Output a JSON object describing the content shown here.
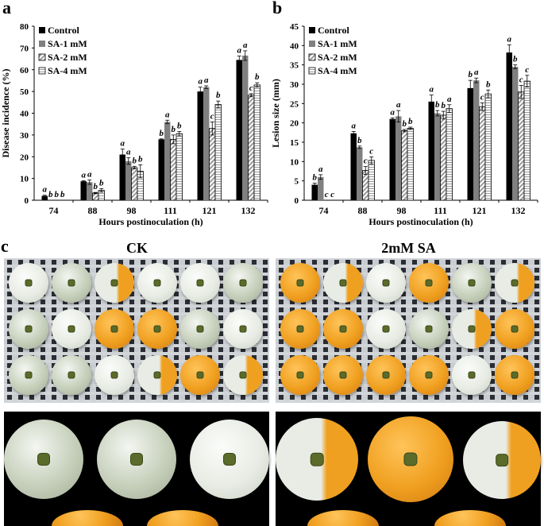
{
  "panels": {
    "a": "a",
    "b": "b",
    "c": "c"
  },
  "photos": {
    "left_title": "CK",
    "right_title": "2mM SA"
  },
  "colors": {
    "control": "#000000",
    "sa1": "#808080",
    "sa2_stripe": "#9a9a9a",
    "sa4_stripe": "#9a9a9a",
    "orange": "#f0a020",
    "mold": "#e8ece4"
  },
  "chart_data": [
    {
      "type": "bar",
      "panel": "a",
      "ylabel": "Disease incidence (%)",
      "xlabel": "Hours postinoculation (h)",
      "categories": [
        "74",
        "88",
        "98",
        "111",
        "121",
        "132"
      ],
      "ylim": [
        0,
        80
      ],
      "yticks": [
        "0",
        "10",
        "20",
        "30",
        "40",
        "50",
        "60",
        "70",
        "80"
      ],
      "legend_position": "top-left",
      "series": [
        {
          "name": "Control",
          "values": [
            2,
            8.7,
            21,
            28,
            50,
            64.5
          ],
          "errors": [
            0.3,
            0.3,
            2.5,
            0.2,
            2,
            1.8
          ],
          "letters": [
            "a",
            "a",
            "a",
            "b",
            "a",
            "a"
          ]
        },
        {
          "name": "SA-1 mM",
          "values": [
            0,
            8.3,
            18,
            36,
            52,
            66.5
          ],
          "errors": [
            0,
            1,
            1.5,
            0.8,
            0.6,
            2.2
          ],
          "letters": [
            "b",
            "a",
            "a",
            "a",
            "a",
            "a"
          ]
        },
        {
          "name": "SA-2 mM",
          "values": [
            0,
            3.3,
            15,
            28,
            33,
            48.3
          ],
          "errors": [
            0,
            0.3,
            0.6,
            2,
            3,
            0.7
          ],
          "letters": [
            "b",
            "b",
            "b",
            "b",
            "c",
            "c"
          ]
        },
        {
          "name": "SA-4 mM",
          "values": [
            0,
            4.5,
            13.3,
            30.6,
            44,
            53
          ],
          "errors": [
            0,
            0.8,
            3,
            1,
            1.6,
            1
          ],
          "letters": [
            "b",
            "b",
            "b",
            "b",
            "b",
            "b"
          ]
        }
      ]
    },
    {
      "type": "bar",
      "panel": "b",
      "ylabel": "Lesion size (mm)",
      "xlabel": "Hours postinoculation (h)",
      "categories": [
        "74",
        "88",
        "98",
        "111",
        "121",
        "132"
      ],
      "ylim": [
        0,
        45
      ],
      "yticks": [
        "0",
        "5",
        "10",
        "15",
        "20",
        "25",
        "30",
        "35",
        "40",
        "45"
      ],
      "legend_position": "top-left",
      "series": [
        {
          "name": "Control",
          "values": [
            4,
            17.3,
            21,
            25.5,
            29,
            38.2
          ],
          "errors": [
            0.4,
            0.5,
            0.3,
            1.7,
            2,
            2
          ],
          "letters": [
            "b",
            "a",
            "a",
            "a",
            "b",
            "a"
          ]
        },
        {
          "name": "SA-1 mM",
          "values": [
            6,
            13.7,
            21.7,
            22.5,
            31,
            34.5
          ],
          "errors": [
            0.6,
            0.3,
            1.5,
            0.7,
            0.6,
            0.5
          ],
          "letters": [
            "a",
            "b",
            "a",
            "b",
            "a",
            "b"
          ]
        },
        {
          "name": "SA-2 mM",
          "values": [
            0,
            7.7,
            18,
            22,
            24.2,
            28
          ],
          "errors": [
            0,
            1,
            0.3,
            1,
            1,
            1.7
          ],
          "letters": [
            "c",
            "c",
            "b",
            "b",
            "c",
            "c"
          ]
        },
        {
          "name": "SA-4 mM",
          "values": [
            0,
            10.3,
            18.6,
            23.7,
            27.5,
            30.8
          ],
          "errors": [
            0,
            0.9,
            0.3,
            1,
            1,
            1.5
          ],
          "letters": [
            "c",
            "c",
            "b",
            "a",
            "b",
            "c"
          ]
        }
      ]
    }
  ]
}
